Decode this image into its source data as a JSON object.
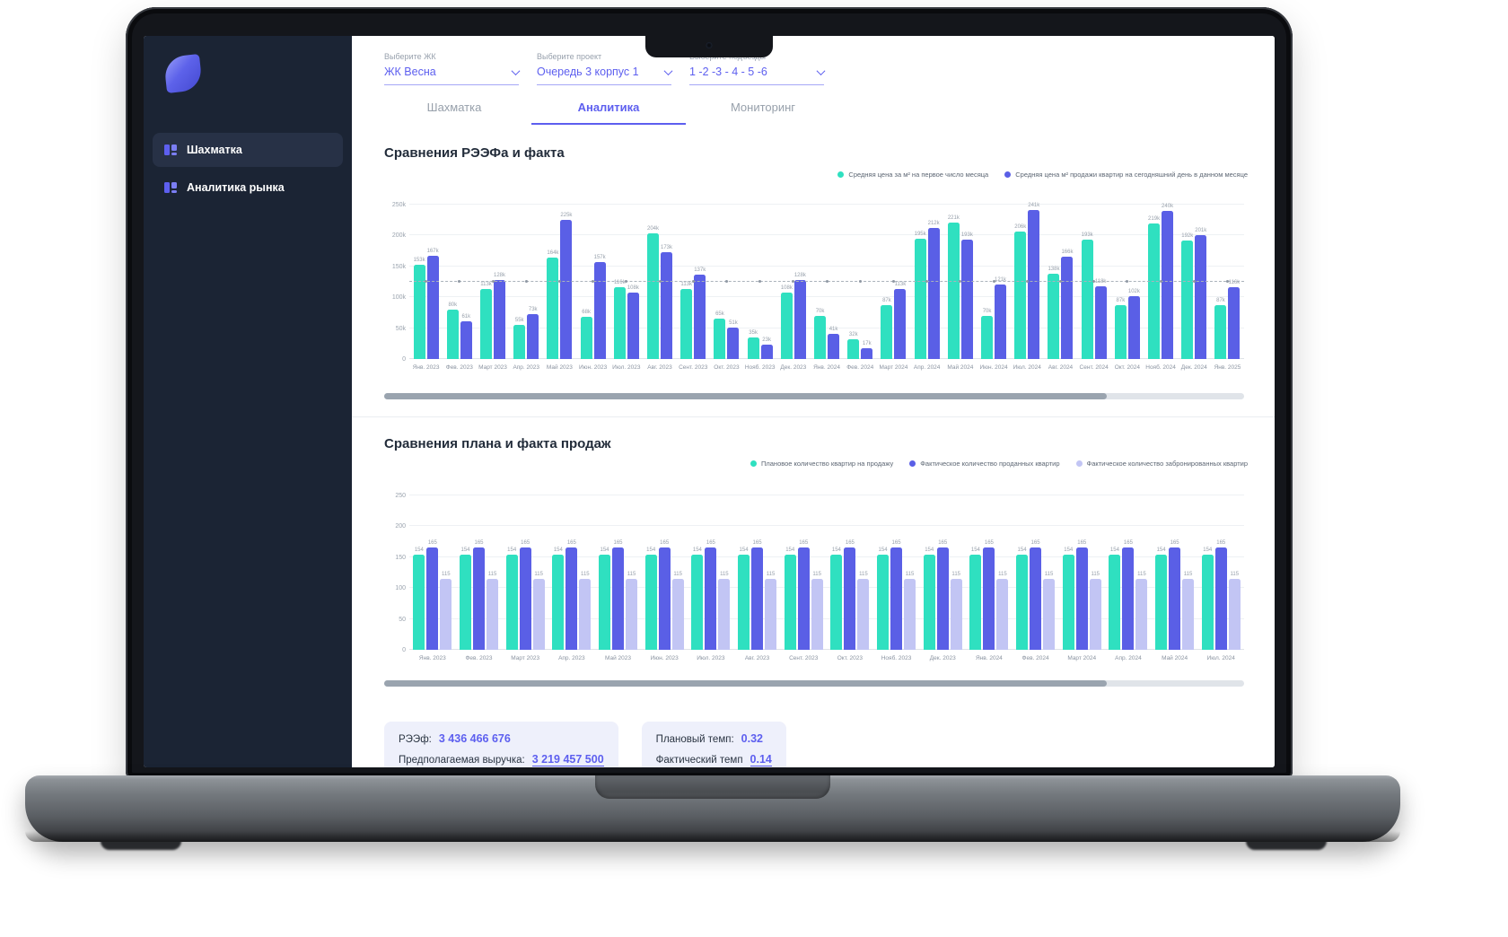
{
  "sidebar": {
    "items": [
      {
        "label": "Шахматка"
      },
      {
        "label": "Аналитика рынка"
      }
    ]
  },
  "filters": [
    {
      "label": "Выберите ЖК",
      "value": "ЖК Весна"
    },
    {
      "label": "Выберите проект",
      "value": "Очередь 3 корпус 1"
    },
    {
      "label": "Выберите подъезды",
      "value": "1 -2 -3 - 4 - 5 -6"
    }
  ],
  "tabs": [
    {
      "label": "Шахматка"
    },
    {
      "label": "Аналитика"
    },
    {
      "label": "Мониторинг"
    }
  ],
  "colors": {
    "accent": "#5d5fef",
    "teal": "#2fe0c0",
    "purple": "#5a5fe6",
    "lightPurple": "#c2c5f4",
    "sidebarBg": "#1b2434"
  },
  "chart_data": [
    {
      "type": "bar",
      "title": "Сравнения РЭЭФа и факта",
      "ylim": [
        0,
        250000
      ],
      "ymax": 250,
      "yticks": [
        "250k",
        "200k",
        "150k",
        "100k",
        "50k",
        "0"
      ],
      "unit_suffix": "k",
      "dashed_line": 125,
      "legend_position": "top-right",
      "categories": [
        "Янв. 2023",
        "Фев. 2023",
        "Март 2023",
        "Апр. 2023",
        "Май 2023",
        "Июн. 2023",
        "Июл. 2023",
        "Авг. 2023",
        "Сент. 2023",
        "Окт. 2023",
        "Нояб. 2023",
        "Дек. 2023",
        "Янв. 2024",
        "Фев. 2024",
        "Март 2024",
        "Апр. 2024",
        "Май 2024",
        "Июн. 2024",
        "Июл. 2024",
        "Авг. 2024",
        "Сент. 2024",
        "Окт. 2024",
        "Нояб. 2024",
        "Дек. 2024",
        "Янв. 2025"
      ],
      "series": [
        {
          "name": "Средняя цена за м² на первое число месяца",
          "color": "#2fe0c0",
          "values": [
            153,
            80,
            113,
            55,
            164,
            68,
            116,
            204,
            113,
            65,
            35,
            108,
            70,
            32,
            87,
            195,
            221,
            70,
            206,
            138,
            193,
            87,
            219,
            192,
            87
          ]
        },
        {
          "name": "Средняя цена м² продажи квартир на сегодняшний день в данном месяце",
          "color": "#5a5fe6",
          "values": [
            167,
            61,
            128,
            73,
            225,
            157,
            108,
            173,
            137,
            51,
            23,
            128,
            41,
            17,
            113,
            212,
            193,
            121,
            241,
            166,
            118,
            102,
            240,
            201,
            116
          ]
        }
      ]
    },
    {
      "type": "bar",
      "title": "Сравнения плана и факта продаж",
      "ylim": [
        0,
        250
      ],
      "ymax": 250,
      "yticks": [
        "250",
        "200",
        "150",
        "100",
        "50",
        "0"
      ],
      "unit_suffix": "",
      "dashed_line": null,
      "legend_position": "top-right",
      "categories": [
        "Янв. 2023",
        "Фев. 2023",
        "Март 2023",
        "Апр. 2023",
        "Май 2023",
        "Июн. 2023",
        "Июл. 2023",
        "Авг. 2023",
        "Сент. 2023",
        "Окт. 2023",
        "Нояб. 2023",
        "Дек. 2023",
        "Янв. 2024",
        "Фев. 2024",
        "Март 2024",
        "Апр. 2024",
        "Май 2024",
        "Июл. 2024"
      ],
      "series": [
        {
          "name": "Плановое количество квартир на продажу",
          "color": "#2fe0c0",
          "values": [
            154,
            154,
            154,
            154,
            154,
            154,
            154,
            154,
            154,
            154,
            154,
            154,
            154,
            154,
            154,
            154,
            154,
            154
          ]
        },
        {
          "name": "Фактическое количество проданных квартир",
          "color": "#5a5fe6",
          "values": [
            165,
            165,
            165,
            165,
            165,
            165,
            165,
            165,
            165,
            165,
            165,
            165,
            165,
            165,
            165,
            165,
            165,
            165
          ]
        },
        {
          "name": "Фактическое количество забронированных квартир",
          "color": "#c2c5f4",
          "values": [
            115,
            115,
            115,
            115,
            115,
            115,
            115,
            115,
            115,
            115,
            115,
            115,
            115,
            115,
            115,
            115,
            115,
            115
          ]
        }
      ]
    }
  ],
  "summary": {
    "cards": [
      {
        "rows": [
          {
            "label": "РЭЭф:",
            "value": "3 436 466 676"
          },
          {
            "label": "Предполагаемая выручка:",
            "value": "3 219 457 500"
          }
        ]
      },
      {
        "rows": [
          {
            "label": "Плановый темп:",
            "value": "0.32"
          },
          {
            "label": "Фактический темп",
            "value": "0.14"
          }
        ]
      }
    ]
  }
}
